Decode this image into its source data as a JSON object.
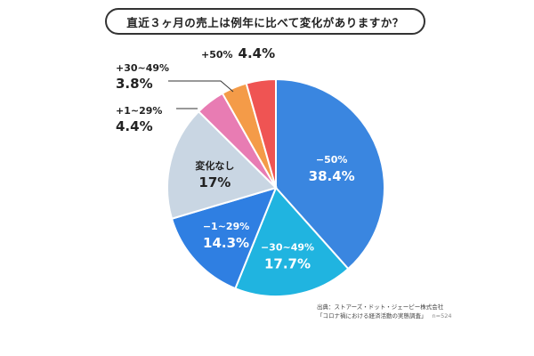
{
  "title": "直近３ヶ月の売上は例年に比べて変化がありますか？",
  "chart_data": {
    "type": "pie",
    "title": "直近３ヶ月の売上は例年に比べて変化がありますか？",
    "slices": [
      {
        "label": "−50%",
        "value": 38.4,
        "display": "38.4%",
        "color": "#3a86e0"
      },
      {
        "label": "−30~49%",
        "value": 17.7,
        "display": "17.7%",
        "color": "#20b4e0"
      },
      {
        "label": "−1~29%",
        "value": 14.3,
        "display": "14.3%",
        "color": "#2f7fe2"
      },
      {
        "label": "変化なし",
        "value": 17,
        "display": "17%",
        "color": "#c9d6e3"
      },
      {
        "label": "+1~29%",
        "value": 4.4,
        "display": "4.4%",
        "color": "#e87cb3"
      },
      {
        "label": "+30~49%",
        "value": 3.8,
        "display": "3.8%",
        "color": "#f49b48"
      },
      {
        "label": "+50%",
        "value": 4.4,
        "display": "4.4%",
        "color": "#ef5453"
      }
    ]
  },
  "source": {
    "line1": "出典：ストアーズ・ドット・ジェーピー株式会社",
    "line2": "「コロナ禍における経済活動の実態調査」",
    "sample": "n=524"
  }
}
